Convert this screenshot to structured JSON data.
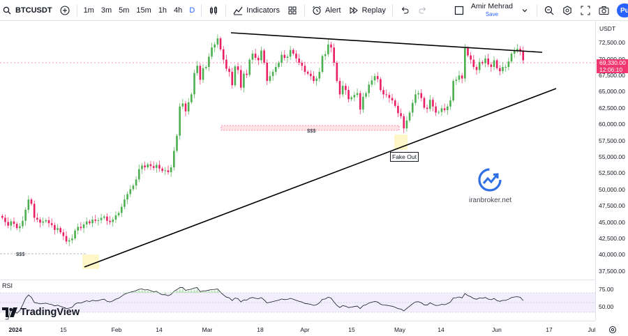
{
  "toolbar": {
    "symbol": "BTCUSDT",
    "timeframes": [
      "1m",
      "3m",
      "5m",
      "15m",
      "1h",
      "4h",
      "D"
    ],
    "active_timeframe": "D",
    "indicators_label": "Indicators",
    "alert_label": "Alert",
    "replay_label": "Replay",
    "user_name": "Amir Mehrad",
    "save_label": "Save",
    "publish_label": "Pu"
  },
  "price_axis": {
    "currency": "USDT",
    "ticks": [
      "72,500.00",
      "70,000.00",
      "67,500.00",
      "65,000.00",
      "62,500.00",
      "60,000.00",
      "57,500.00",
      "55,000.00",
      "52,500.00",
      "50,000.00",
      "47,500.00",
      "45,000.00",
      "42,500.00",
      "40,000.00",
      "37,500.00"
    ],
    "current_price": "69,330.00",
    "countdown": "12:06:10"
  },
  "rsi": {
    "title": "RSI",
    "ticks": [
      "75.00",
      "50.00"
    ]
  },
  "date_axis": {
    "labels": [
      "2024",
      "15",
      "Feb",
      "14",
      "Mar",
      "18",
      "Apr",
      "15",
      "May",
      "14",
      "Jun",
      "17",
      "Jul"
    ]
  },
  "annotations": {
    "fake_out": "Fake Out",
    "liquidity_upper": "$$$",
    "liquidity_lower": "$$$",
    "watermark": "iranbroker.net"
  },
  "branding": {
    "logo_text": "TradingView"
  },
  "colors": {
    "bull": "#26a69a",
    "bull_green": "#4caf50",
    "bear": "#e91e63",
    "accent": "#2962ff",
    "price_label": "#f23670",
    "rsi_band": "#f3eefc"
  },
  "chart_data": {
    "type": "candlestick",
    "symbol": "BTCUSDT",
    "interval": "D",
    "ylim": [
      36000,
      74500
    ],
    "closes": [
      43500,
      42800,
      42200,
      42900,
      42500,
      41800,
      42100,
      43000,
      44800,
      46500,
      45800,
      43500,
      43200,
      42700,
      42900,
      43100,
      42600,
      42300,
      41500,
      41800,
      41100,
      40500,
      39600,
      39800,
      40100,
      41400,
      42000,
      41800,
      42400,
      42900,
      42600,
      43200,
      43000,
      43100,
      43500,
      43700,
      43000,
      42800,
      43200,
      43900,
      44300,
      45300,
      46500,
      47400,
      48200,
      48800,
      49800,
      51500,
      52100,
      51800,
      52300,
      52000,
      51700,
      52200,
      51600,
      51200,
      51300,
      51000,
      51800,
      54500,
      57000,
      61800,
      62300,
      61000,
      62500,
      63800,
      67300,
      68500,
      66200,
      68100,
      68300,
      70000,
      71500,
      72000,
      73000,
      71200,
      69500,
      68000,
      67500,
      65300,
      68400,
      67800,
      64900,
      67200,
      67000,
      69500,
      70500,
      69800,
      69400,
      71000,
      69000,
      66000,
      66800,
      67500,
      68300,
      69000,
      70300,
      69800,
      70000,
      71100,
      70500,
      69700,
      69000,
      68500,
      67500,
      67200,
      66800,
      66000,
      66400,
      67500,
      70100,
      70400,
      72000,
      71500,
      69000,
      66000,
      63800,
      65200,
      64500,
      63000,
      63300,
      63700,
      64000,
      61300,
      63400,
      64000,
      65400,
      66100,
      66800,
      66300,
      64500,
      63800,
      63700,
      63200,
      62800,
      61900,
      60700,
      60200,
      58200,
      59500,
      60800,
      62400,
      63800,
      64000,
      63200,
      61600,
      61400,
      62900,
      61800,
      60800,
      60900,
      61500,
      61200,
      61800,
      62800,
      66000,
      66200,
      66900,
      66400,
      71400,
      70200,
      69500,
      68300,
      67800,
      69100,
      68900,
      69700,
      68700,
      68300,
      69400,
      68100,
      67600,
      68300,
      68300,
      69200,
      70500,
      71000,
      71300,
      71000,
      69400
    ]
  }
}
